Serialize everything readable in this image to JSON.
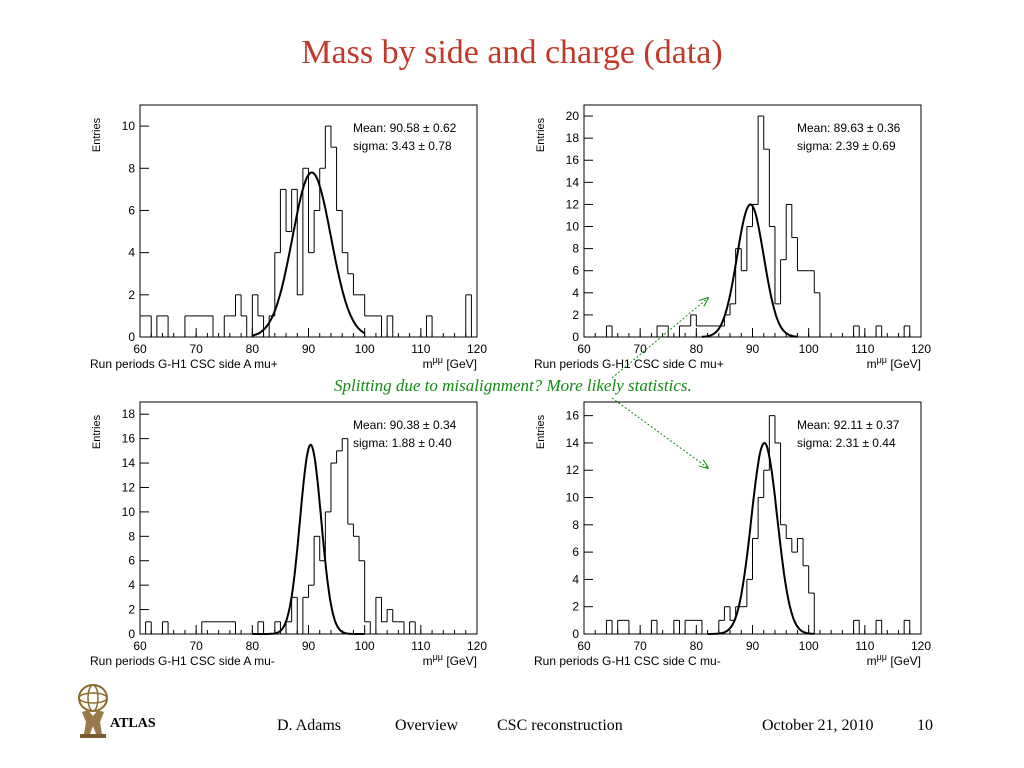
{
  "slide": {
    "title": "Mass by side and charge (data)",
    "annotation": "Splitting due to misalignment? More likely statistics.",
    "footer": {
      "author": "D. Adams",
      "section": "Overview",
      "topic": "CSC reconstruction",
      "date": "October 21, 2010",
      "page": "10",
      "logo_text": "ATLAS"
    },
    "colors": {
      "title": "#c0392b",
      "annotation": "#118a11"
    }
  },
  "chart_data": [
    {
      "type": "bar",
      "caption": "Run periods G-H1 CSC side A mu+",
      "xlabel": "m^{μμ} [GeV]",
      "ylabel": "Entries",
      "xlim": [
        60,
        120
      ],
      "ylim": [
        0,
        11
      ],
      "xticks": [
        60,
        70,
        80,
        90,
        100,
        110,
        120
      ],
      "yticks": [
        0,
        2,
        4,
        6,
        8,
        10
      ],
      "bin_edges_start": 60,
      "bin_width": 1,
      "values": [
        1,
        1,
        0,
        1,
        1,
        0,
        0,
        0,
        1,
        1,
        1,
        1,
        1,
        0,
        0,
        1,
        1,
        2,
        1,
        0,
        2,
        1,
        0,
        1,
        4,
        7,
        5,
        7,
        2,
        8,
        4,
        6,
        8,
        10,
        9,
        6,
        4,
        3,
        2,
        2,
        1,
        1,
        1,
        0,
        1,
        0,
        0,
        0,
        0,
        0,
        0,
        1,
        0,
        0,
        0,
        0,
        0,
        0,
        2,
        0
      ],
      "fit": {
        "mean": 90.58,
        "sigma": 3.43,
        "peak": 7.8,
        "range": [
          80,
          100
        ]
      },
      "stats": [
        "Mean: 90.58 ± 0.62",
        "sigma: 3.43 ± 0.78"
      ]
    },
    {
      "type": "bar",
      "caption": "Run periods G-H1 CSC side C mu+",
      "xlabel": "m^{μμ} [GeV]",
      "ylabel": "Entries",
      "xlim": [
        60,
        120
      ],
      "ylim": [
        0,
        21
      ],
      "xticks": [
        60,
        70,
        80,
        90,
        100,
        110,
        120
      ],
      "yticks": [
        0,
        2,
        4,
        6,
        8,
        10,
        12,
        14,
        16,
        18,
        20
      ],
      "bin_edges_start": 60,
      "bin_width": 1,
      "values": [
        0,
        0,
        0,
        0,
        1,
        0,
        0,
        0,
        0,
        0,
        0,
        0,
        0,
        1,
        1,
        0,
        0,
        1,
        1,
        2,
        1,
        1,
        1,
        1,
        1,
        2,
        3,
        8,
        6,
        10,
        12,
        20,
        17,
        10,
        3,
        7,
        12,
        9,
        6,
        6,
        6,
        4,
        0,
        0,
        0,
        0,
        0,
        0,
        1,
        0,
        0,
        0,
        1,
        0,
        0,
        0,
        0,
        1,
        0,
        0
      ],
      "fit": {
        "mean": 89.63,
        "sigma": 2.39,
        "peak": 12,
        "range": [
          81,
          98
        ]
      },
      "stats": [
        "Mean: 89.63 ± 0.36",
        "sigma: 2.39 ± 0.69"
      ]
    },
    {
      "type": "bar",
      "caption": "Run periods G-H1 CSC side A mu-",
      "xlabel": "m^{μμ} [GeV]",
      "ylabel": "Entries",
      "xlim": [
        60,
        120
      ],
      "ylim": [
        0,
        19
      ],
      "xticks": [
        60,
        70,
        80,
        90,
        100,
        110,
        120
      ],
      "yticks": [
        0,
        2,
        4,
        6,
        8,
        10,
        12,
        14,
        16,
        18
      ],
      "bin_edges_start": 60,
      "bin_width": 1,
      "values": [
        0,
        1,
        0,
        0,
        1,
        0,
        0,
        0,
        0,
        0,
        0,
        1,
        1,
        1,
        1,
        1,
        1,
        0,
        0,
        0,
        0,
        1,
        0,
        0,
        1,
        0,
        1,
        3,
        0,
        3,
        4,
        8,
        6,
        10,
        14,
        15,
        16,
        9,
        8,
        6,
        1,
        0,
        3,
        1,
        2,
        1,
        1,
        0,
        1,
        0,
        0,
        0,
        0,
        0,
        0,
        0,
        0,
        0,
        0,
        0
      ],
      "fit": {
        "mean": 90.38,
        "sigma": 1.88,
        "peak": 15.5,
        "range": [
          80,
          100
        ]
      },
      "stats": [
        "Mean: 90.38 ± 0.34",
        "sigma: 1.88 ± 0.40"
      ]
    },
    {
      "type": "bar",
      "caption": "Run periods G-H1 CSC side C mu-",
      "xlabel": "m^{μμ} [GeV]",
      "ylabel": "Entries",
      "xlim": [
        60,
        120
      ],
      "ylim": [
        0,
        17
      ],
      "xticks": [
        60,
        70,
        80,
        90,
        100,
        110,
        120
      ],
      "yticks": [
        0,
        2,
        4,
        6,
        8,
        10,
        12,
        14,
        16
      ],
      "bin_edges_start": 60,
      "bin_width": 1,
      "values": [
        0,
        0,
        0,
        0,
        1,
        0,
        1,
        1,
        0,
        0,
        0,
        0,
        1,
        0,
        0,
        0,
        1,
        0,
        1,
        1,
        1,
        0,
        0,
        0,
        1,
        2,
        1,
        2,
        2,
        4,
        7,
        10,
        12,
        16,
        14,
        8,
        7,
        6,
        7,
        5,
        3,
        0,
        0,
        0,
        0,
        0,
        0,
        0,
        1,
        0,
        0,
        0,
        1,
        0,
        0,
        0,
        0,
        1,
        0,
        0
      ],
      "fit": {
        "mean": 92.11,
        "sigma": 2.31,
        "peak": 14,
        "range": [
          82,
          101
        ]
      },
      "stats": [
        "Mean: 92.11 ± 0.37",
        "sigma: 2.31 ± 0.44"
      ]
    }
  ]
}
